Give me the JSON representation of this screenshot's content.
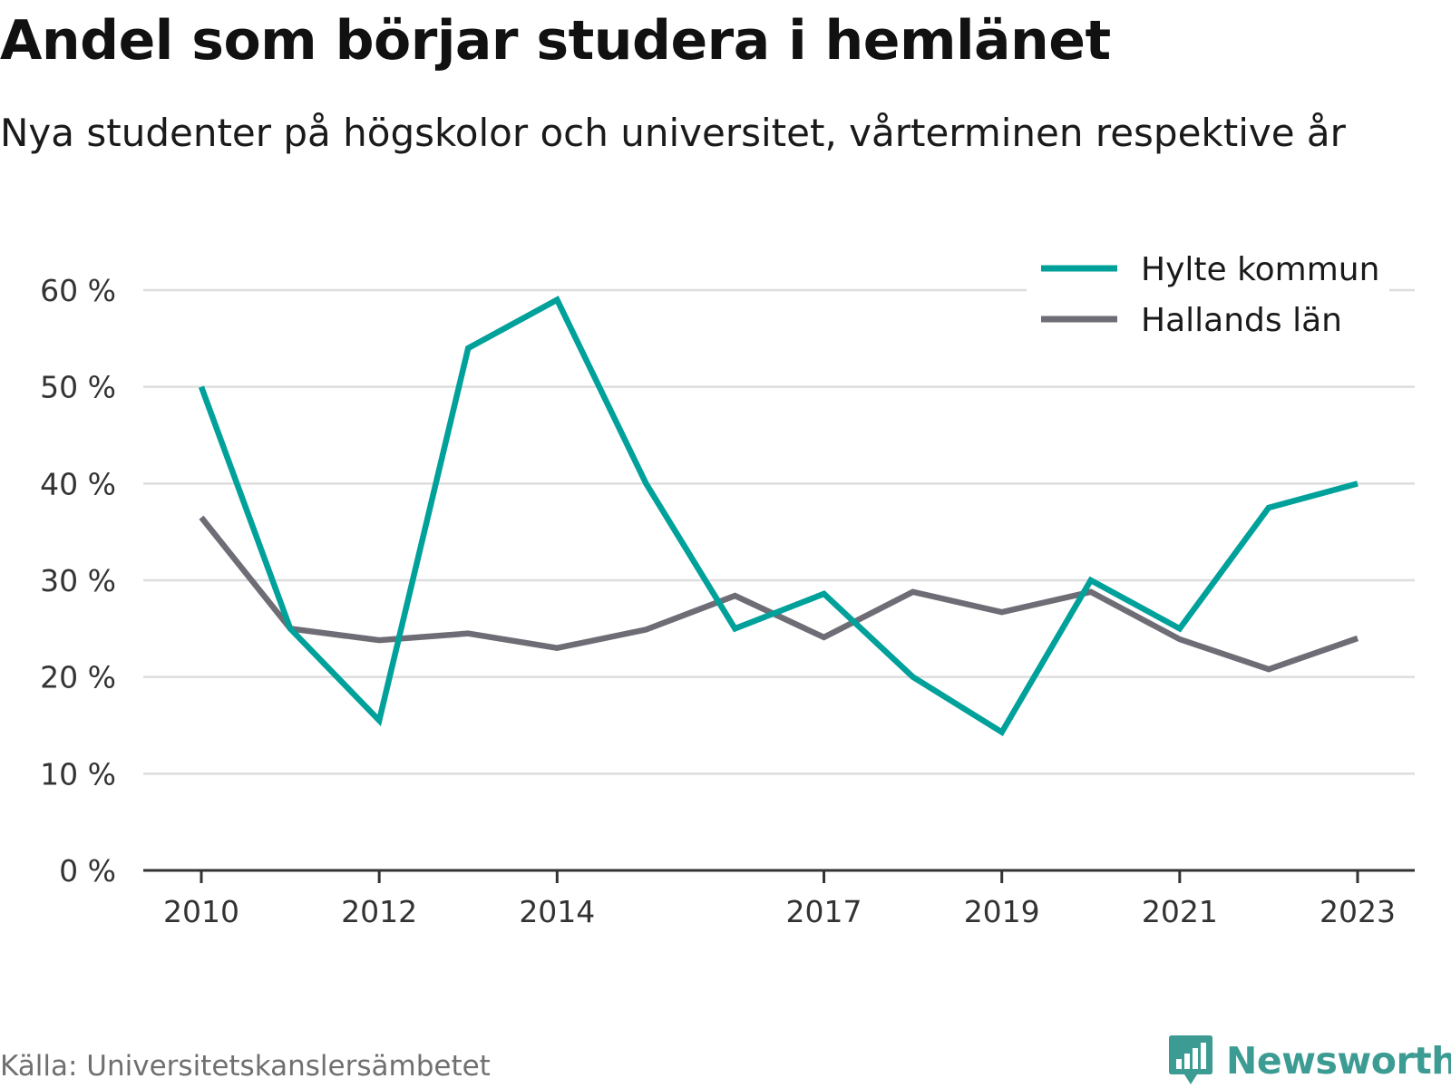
{
  "header": {
    "title": "Andel som börjar studera i hemlänet",
    "subtitle": "Nya studenter på högskolor och universitet, vårterminen respektive år"
  },
  "footer": {
    "source": "Källa: Universitetskanslersämbetet",
    "brand": "Newsworthy",
    "brand_icon": "bar-chart-speech-bubble-icon"
  },
  "colors": {
    "hylte": "#00a19a",
    "halland": "#6e6d76",
    "grid": "#dddddd",
    "axis": "#333333",
    "brand": "#3c9b92"
  },
  "chart_data": {
    "type": "line",
    "title": "Andel som börjar studera i hemlänet",
    "subtitle": "Nya studenter på högskolor och universitet, vårterminen respektive år",
    "x": [
      2010,
      2011,
      2012,
      2013,
      2014,
      2015,
      2016,
      2017,
      2018,
      2019,
      2020,
      2021,
      2022,
      2023
    ],
    "x_tick_labels": [
      "2010",
      "2012",
      "2014",
      "2017",
      "2019",
      "2021",
      "2023"
    ],
    "y_tick_labels": [
      "0 %",
      "10 %",
      "20 %",
      "30 %",
      "40 %",
      "50 %",
      "60 %"
    ],
    "ylim": [
      0,
      60
    ],
    "grid": true,
    "legend_position": "top-right",
    "series": [
      {
        "name": "Hylte kommun",
        "color": "#00a19a",
        "values": [
          50,
          25,
          15.5,
          54,
          59,
          40,
          25,
          28.6,
          20,
          14.3,
          30,
          25,
          37.5,
          40
        ]
      },
      {
        "name": "Hallands län",
        "color": "#6e6d76",
        "values": [
          36.5,
          25,
          23.8,
          24.5,
          23,
          24.9,
          28.4,
          24.1,
          28.8,
          26.7,
          28.8,
          23.9,
          20.8,
          24
        ]
      }
    ]
  }
}
